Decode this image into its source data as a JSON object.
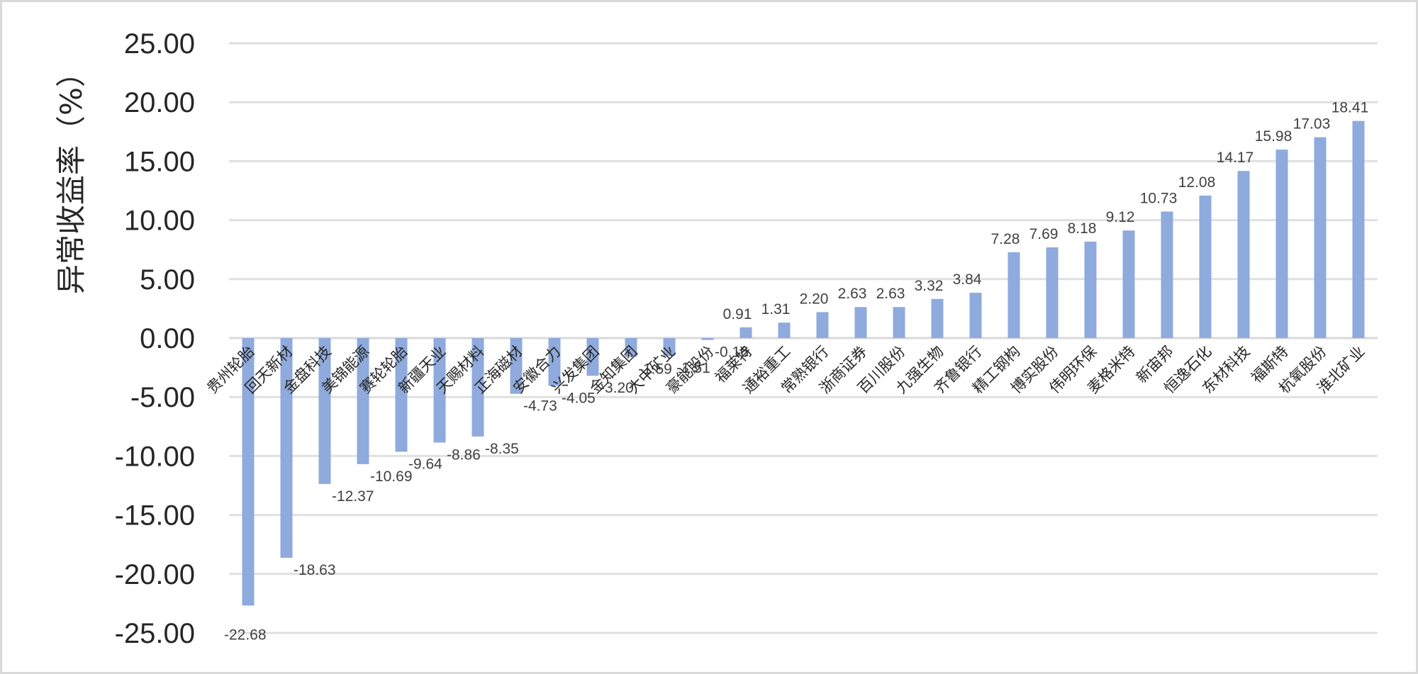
{
  "chart_data": {
    "type": "bar",
    "ylabel": "异常收益率（%）",
    "ylim": [
      -25,
      25
    ],
    "ytick_step": 5,
    "grid": true,
    "bar_color": "#8faadc",
    "categories": [
      "贵州轮胎",
      "回天新材",
      "金盘科技",
      "美锦能源",
      "赛轮轮胎",
      "新疆天业",
      "天赐材料",
      "正海磁材",
      "安徽合力",
      "兴发集团",
      "金知集团",
      "大中矿业",
      "豪能股份",
      "福莱特",
      "通裕重工",
      "常熟银行",
      "浙商证券",
      "百川股份",
      "九强生物",
      "齐鲁银行",
      "精工钢构",
      "博实股份",
      "伟明环保",
      "麦格米特",
      "新宙邦",
      "恒逸石化",
      "东材科技",
      "福斯特",
      "杭氧股份",
      "淮北矿业"
    ],
    "values": [
      -22.68,
      -18.63,
      -12.37,
      -10.69,
      -9.64,
      -8.86,
      -8.35,
      -4.73,
      -4.05,
      -3.2,
      -1.59,
      -1.51,
      -0.16,
      0.91,
      1.31,
      2.2,
      2.63,
      2.63,
      3.32,
      3.84,
      7.28,
      7.69,
      8.18,
      9.12,
      10.73,
      12.08,
      14.17,
      15.98,
      17.03,
      18.41
    ],
    "data_labels": [
      "-22.68",
      "-18.63",
      "-12.37",
      "-10.69",
      "-9.64",
      "-8.86",
      "-8.35",
      "-4.73",
      "-4.05",
      "-3.20",
      "-1.59",
      "-1.51",
      "-0.16",
      "0.91",
      "1.31",
      "2.20",
      "2.63",
      "2.63",
      "3.32",
      "3.84",
      "7.28",
      "7.69",
      "8.18",
      "9.12",
      "10.73",
      "12.08",
      "14.17",
      "15.98",
      "17.03",
      "18.41"
    ]
  }
}
